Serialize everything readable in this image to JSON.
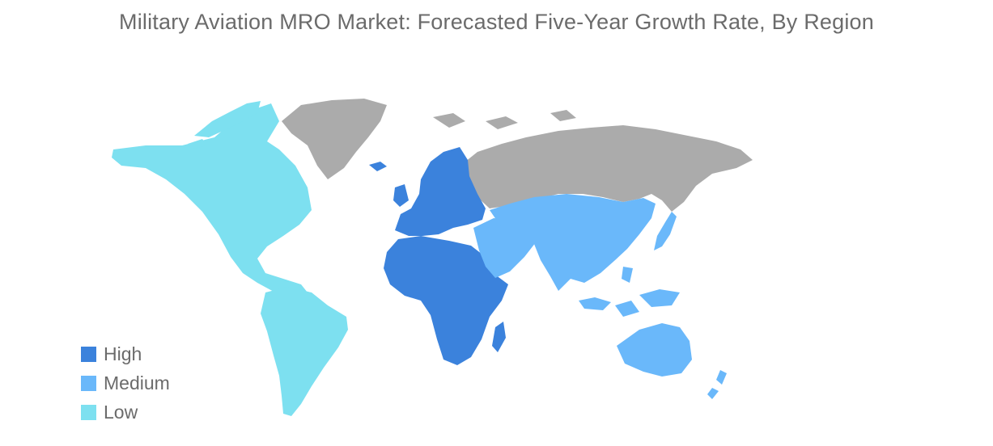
{
  "title": "Military Aviation MRO Market: Forecasted Five-Year Growth Rate, By Region",
  "colors": {
    "high": "#3b82dc",
    "medium": "#6ab8fa",
    "low": "#7de0f0",
    "no_data": "#ababab"
  },
  "legend": [
    {
      "label": "High",
      "color": "#3b82dc"
    },
    {
      "label": "Medium",
      "color": "#6ab8fa"
    },
    {
      "label": "Low",
      "color": "#7de0f0"
    }
  ],
  "regions": {
    "north_america": "Low",
    "south_america": "Low",
    "europe": "High",
    "africa": "High",
    "middle_east": "Medium",
    "asia_pacific": "Medium",
    "russia_greenland": "no data"
  }
}
